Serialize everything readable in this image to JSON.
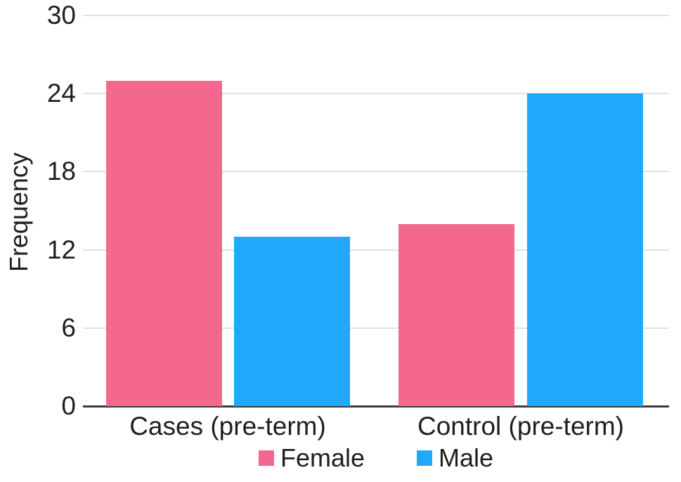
{
  "chart_data": {
    "type": "bar",
    "title": "",
    "xlabel": "",
    "ylabel": "Frequency",
    "categories": [
      "Cases (pre-term)",
      "Control (pre-term)"
    ],
    "series": [
      {
        "name": "Female",
        "color": "#f4678e",
        "values": [
          25,
          14
        ]
      },
      {
        "name": "Male",
        "color": "#1ea9fb",
        "values": [
          13,
          24
        ]
      }
    ],
    "ylim": [
      0,
      30
    ],
    "yticks": [
      0,
      6,
      12,
      18,
      24,
      30
    ],
    "grid": true,
    "legend_position": "bottom",
    "axis_color": "#3c3c3c",
    "grid_color": "#e1e1e1",
    "text_color": "#1f1f1f"
  }
}
